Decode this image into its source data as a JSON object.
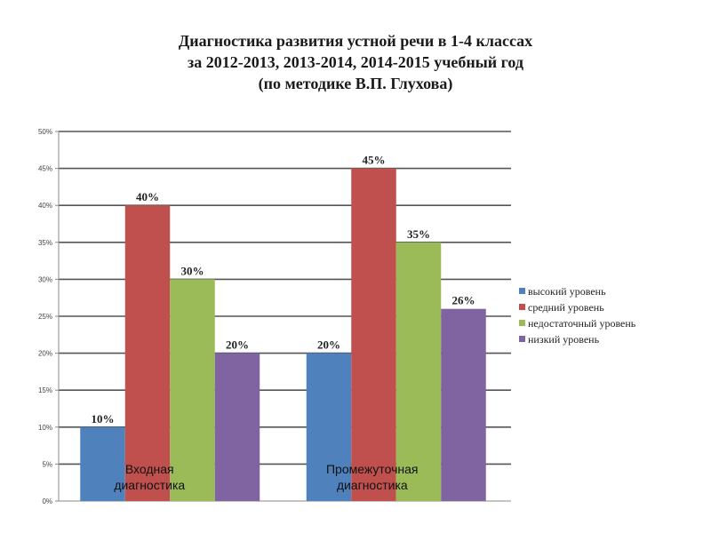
{
  "title_lines": [
    "Диагностика развития устной речи в 1-4 классах",
    "за 2012-2013, 2013-2014, 2014-2015 учебный год",
    "(по методике В.П. Глухова)"
  ],
  "chart_data": {
    "type": "bar",
    "categories": [
      [
        "Входная",
        "диагностика"
      ],
      [
        "Промежуточная",
        "диагностика"
      ]
    ],
    "series": [
      {
        "name": "высокий уровень",
        "color": "#4f81bd",
        "values": [
          10,
          20
        ]
      },
      {
        "name": "средний уровень",
        "color": "#c0504d",
        "values": [
          40,
          45
        ]
      },
      {
        "name": "недостаточный уровень",
        "color": "#9bbb59",
        "values": [
          30,
          35
        ]
      },
      {
        "name": "низкий уровень",
        "color": "#8064a2",
        "values": [
          20,
          26
        ]
      }
    ],
    "ylim": [
      0,
      50
    ],
    "ytick_step": 5,
    "value_suffix": "%",
    "grid": true,
    "legend": "right"
  }
}
